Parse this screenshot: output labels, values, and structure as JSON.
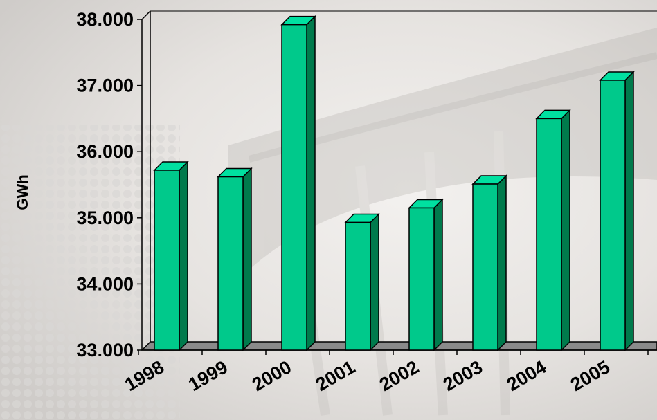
{
  "chart_data": {
    "type": "bar",
    "title": "",
    "xlabel": "",
    "ylabel": "GWh",
    "categories": [
      "1998",
      "1999",
      "2000",
      "2001",
      "2002",
      "2003",
      "2004",
      "2005"
    ],
    "values": [
      35720,
      35620,
      37920,
      34930,
      35150,
      35510,
      36500,
      37080
    ],
    "ylim": [
      33000,
      38000
    ],
    "yticks": [
      33000,
      34000,
      35000,
      36000,
      37000,
      38000
    ],
    "ytick_labels": [
      "33.000",
      "34.000",
      "35.000",
      "36.000",
      "37.000",
      "38.000"
    ],
    "grid": false,
    "legend": "none",
    "colors": {
      "bar_front": "#00c98b",
      "bar_side": "#007a4c",
      "bar_top": "#00e0a0",
      "outline": "#000000",
      "floor": "#8a8a8a"
    }
  }
}
